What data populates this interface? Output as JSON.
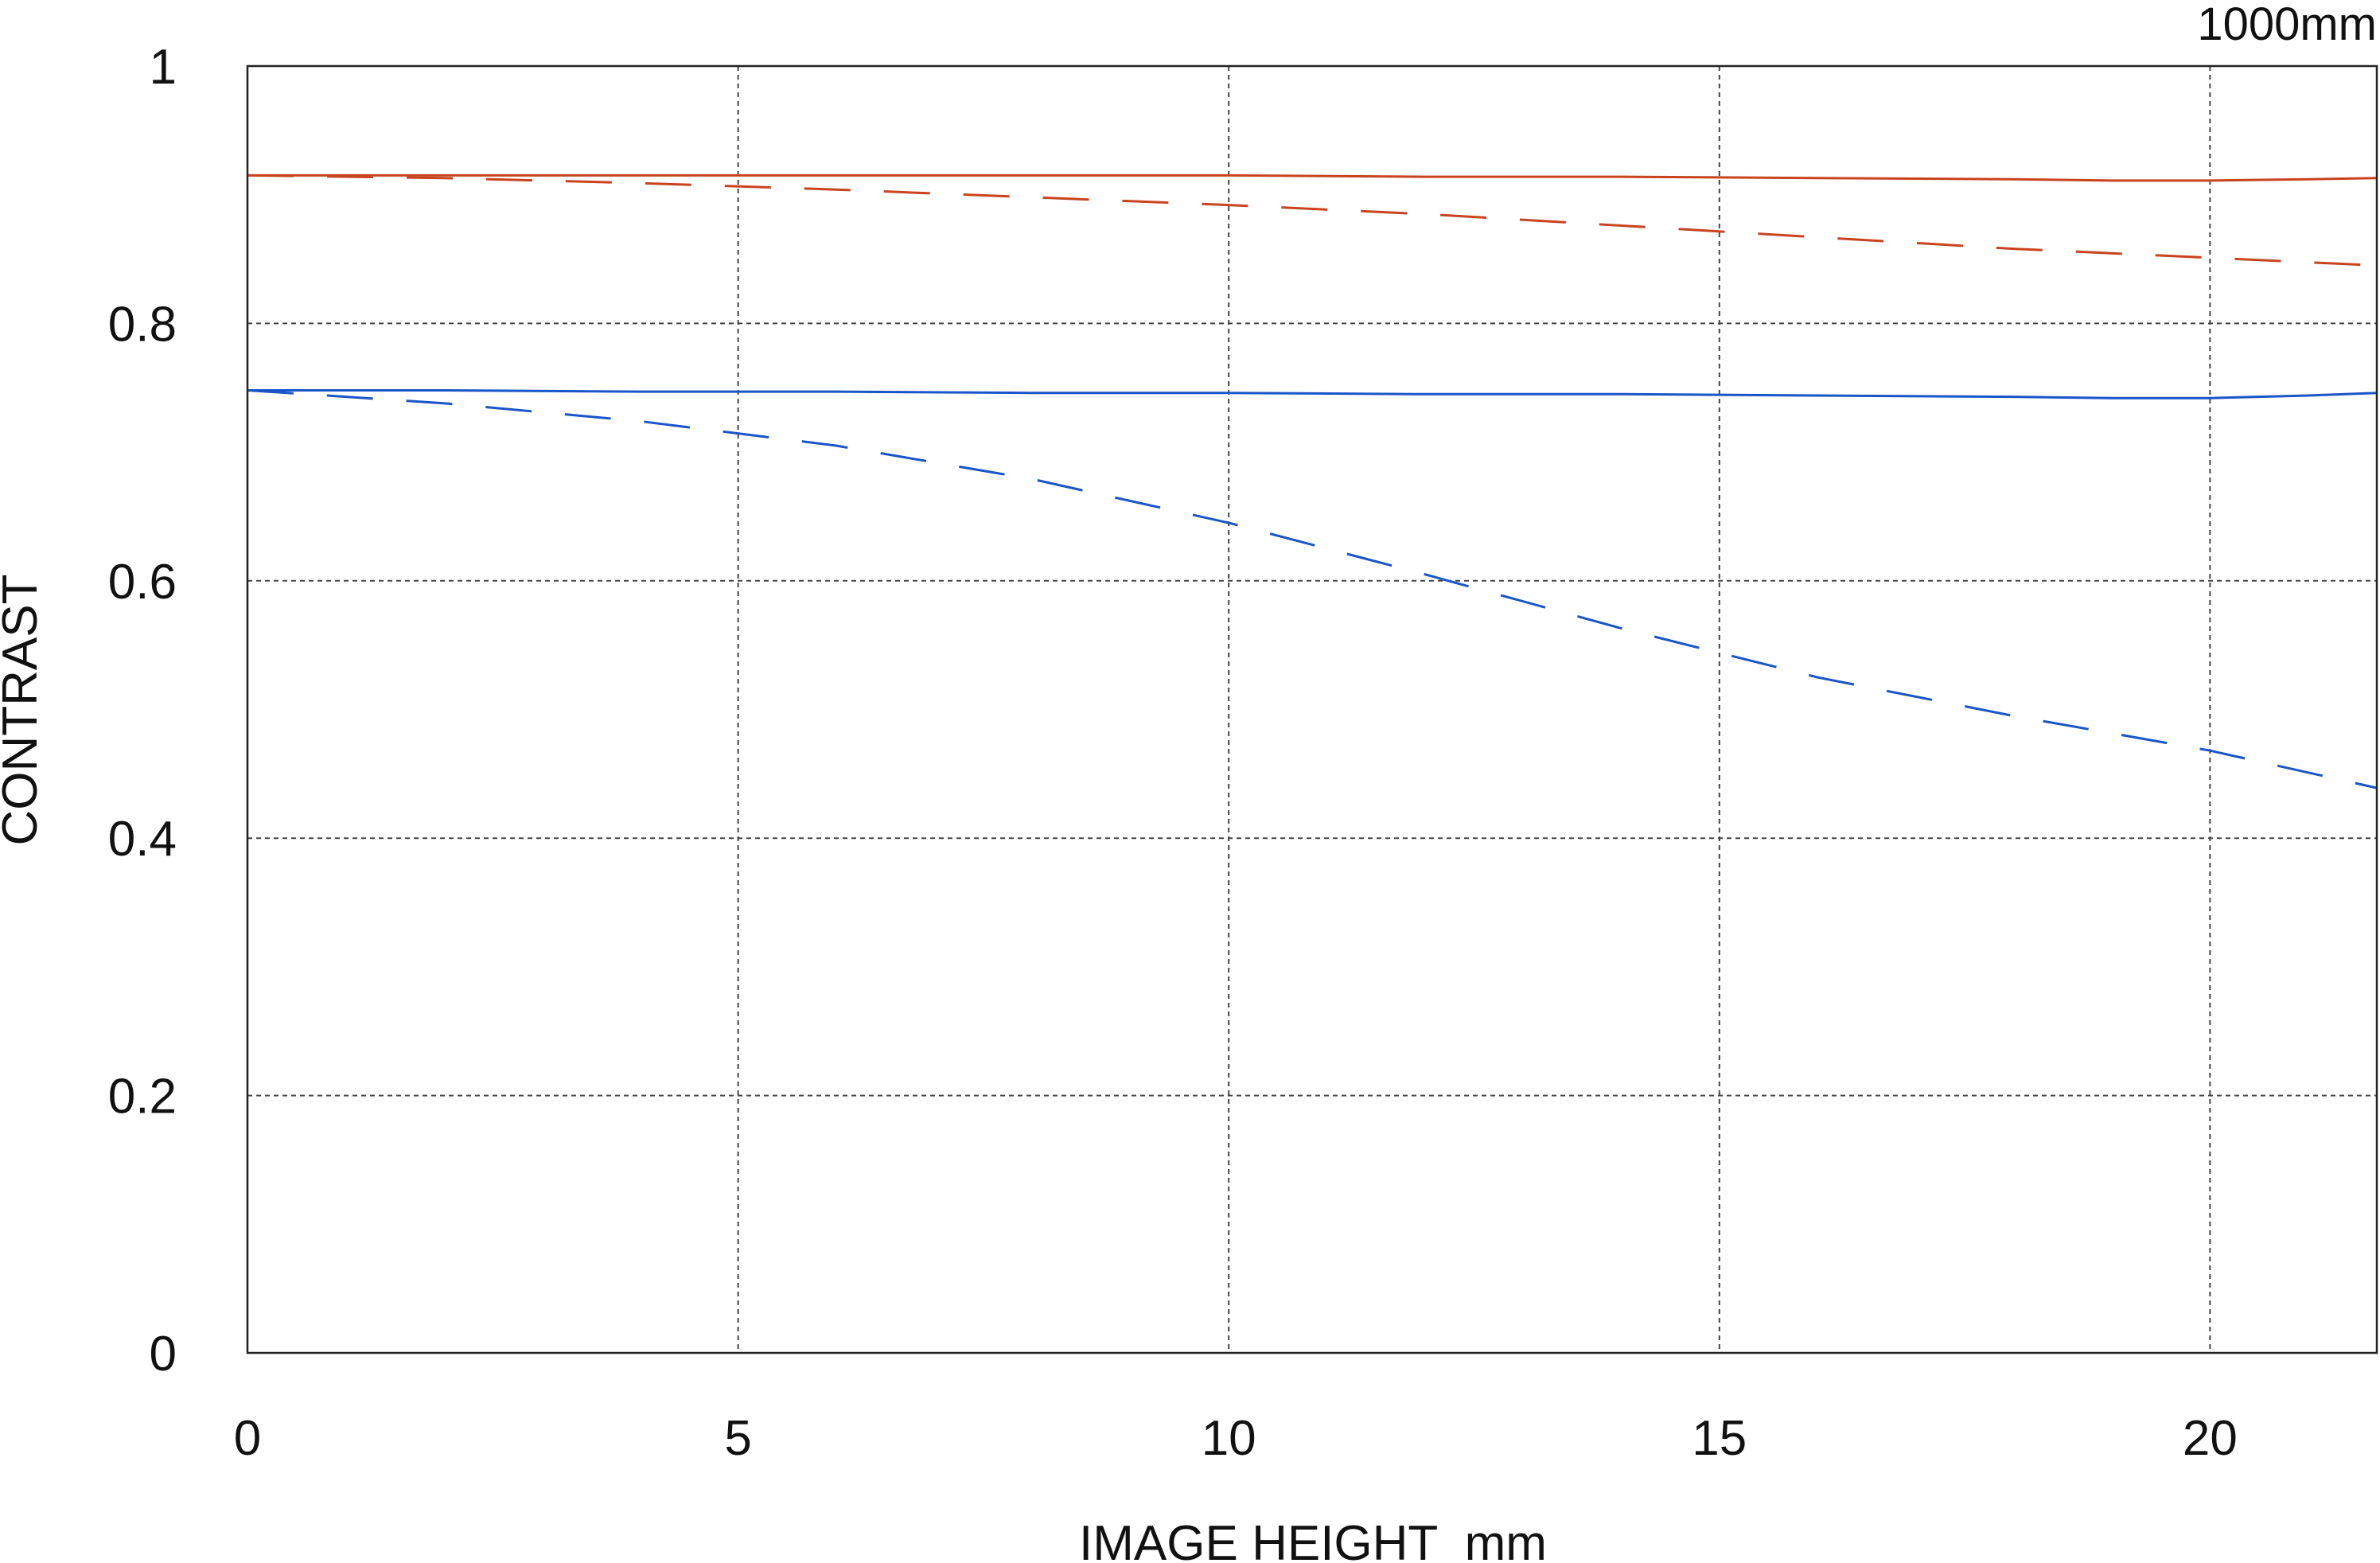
{
  "chart_data": {
    "type": "line",
    "title": "",
    "annotation": "1000mm",
    "xlabel": "IMAGE HEIGHT  mm",
    "ylabel": "CONTRAST",
    "xlim": [
      0,
      21.7
    ],
    "ylim": [
      0,
      1
    ],
    "xticks": [
      0,
      5,
      10,
      15,
      20
    ],
    "yticks": [
      0,
      0.2,
      0.4,
      0.6,
      0.8,
      1
    ],
    "ytick_labels": [
      "0",
      "0.2",
      "0.4",
      "0.6",
      "0.8",
      "1"
    ],
    "grid": true,
    "colors": {
      "red": "#c8431e",
      "blue": "#1a55c8",
      "grid": "#444444",
      "frame": "#222222"
    },
    "series": [
      {
        "color": "red",
        "dash": "solid",
        "x": [
          0,
          2,
          4,
          6,
          8,
          10,
          12,
          14,
          16,
          18,
          19,
          20,
          21,
          21.7
        ],
        "y": [
          0.915,
          0.915,
          0.915,
          0.915,
          0.915,
          0.915,
          0.914,
          0.914,
          0.913,
          0.912,
          0.911,
          0.911,
          0.912,
          0.913
        ]
      },
      {
        "color": "red",
        "dash": "dashed",
        "x": [
          0,
          2,
          4,
          6,
          8,
          10,
          12,
          14,
          16,
          18,
          20,
          21.7
        ],
        "y": [
          0.915,
          0.913,
          0.909,
          0.904,
          0.898,
          0.892,
          0.885,
          0.876,
          0.867,
          0.858,
          0.851,
          0.845
        ]
      },
      {
        "color": "blue",
        "dash": "solid",
        "x": [
          0,
          2,
          4,
          6,
          8,
          10,
          12,
          14,
          16,
          18,
          19,
          20,
          21,
          21.7
        ],
        "y": [
          0.748,
          0.748,
          0.747,
          0.747,
          0.746,
          0.746,
          0.745,
          0.745,
          0.744,
          0.743,
          0.742,
          0.742,
          0.744,
          0.746
        ]
      },
      {
        "color": "blue",
        "dash": "dashed",
        "x": [
          0,
          2,
          4,
          6,
          8,
          10,
          12,
          14,
          16,
          18,
          20,
          21.7
        ],
        "y": [
          0.748,
          0.738,
          0.724,
          0.705,
          0.679,
          0.645,
          0.605,
          0.563,
          0.525,
          0.495,
          0.468,
          0.439
        ]
      }
    ]
  }
}
